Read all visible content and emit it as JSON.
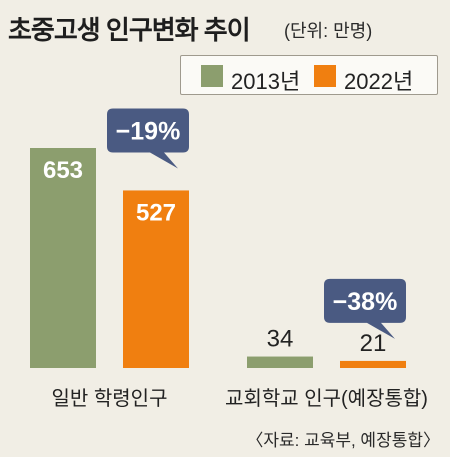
{
  "title": "초중고생 인구변화 추이",
  "unit": "(단위: 만명)",
  "source": "〈자료: 교육부, 예장통합〉",
  "colors": {
    "y2013": "#8c9e6e",
    "y2022": "#f07f10",
    "callout": "#4a5a82",
    "background": "#f1eee5"
  },
  "chart_data": {
    "type": "bar",
    "categories": [
      "일반 학령인구",
      "교회학교 인구(예장통합)"
    ],
    "series": [
      {
        "name": "2013년",
        "values": [
          653,
          34
        ]
      },
      {
        "name": "2022년",
        "values": [
          527,
          21
        ]
      }
    ],
    "value_labels": [
      [
        "653",
        "34"
      ],
      [
        "527",
        "21"
      ]
    ],
    "changes": [
      "−19%",
      "−38%"
    ],
    "ylim": [
      0,
      653
    ],
    "grid": false,
    "legend": "top-right"
  }
}
